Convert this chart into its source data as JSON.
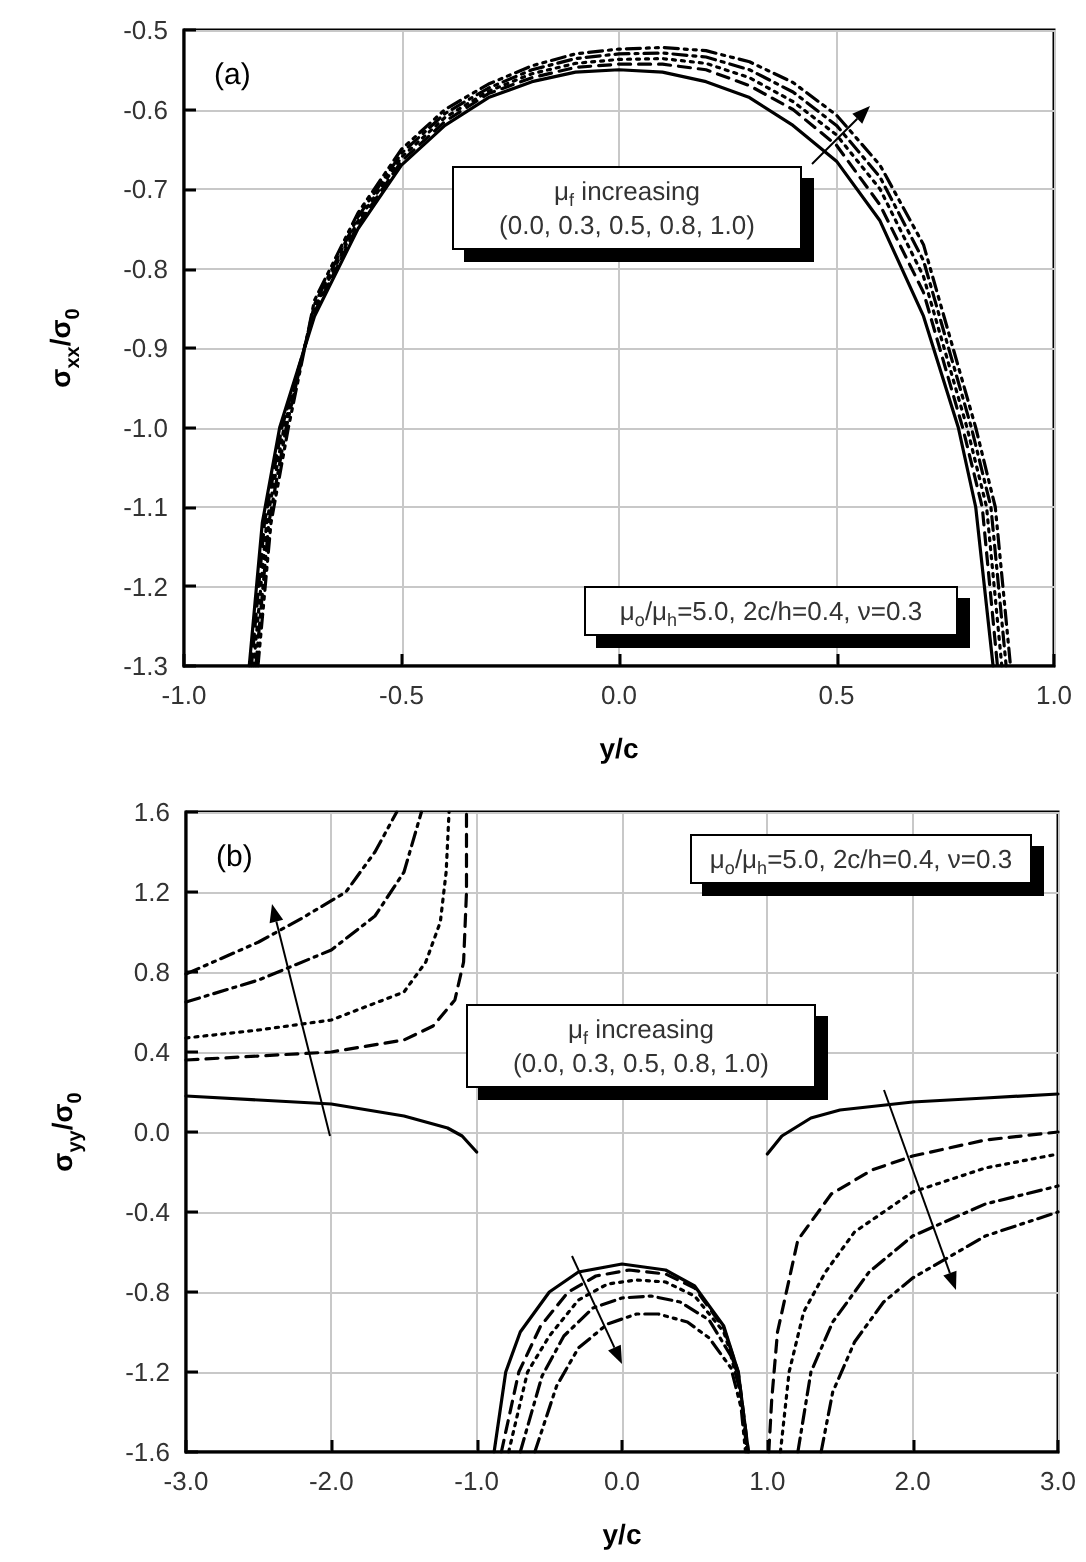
{
  "chart_data": [
    {
      "type": "line",
      "title": "(a)",
      "xlabel": "y/c",
      "ylabel": "σ$_{xx}$/σ$_{0}$",
      "annotations": [
        "μ$_{f}$ increasing\n(0.0, 0.3, 0.5, 0.8, 1.0)",
        "μ$_{o}$/μ$_{h}$=5.0, 2c/h=0.4, ν=0.3"
      ],
      "xlim": [
        -1,
        1
      ],
      "xticks": [
        {
          "value": -1,
          "label": "-1.0"
        },
        -0.5,
        {
          "value": 0,
          "label": "0.0"
        },
        0.5,
        {
          "value": 1,
          "label": "1.0"
        }
      ],
      "ylim": [
        -1.3,
        -0.5
      ],
      "yticks": [
        -0.5,
        -0.6,
        -0.7,
        -0.8,
        -0.9,
        {
          "value": -1,
          "label": "-1.0"
        },
        -1.1,
        -1.2,
        -1.3
      ],
      "grid": true,
      "marker": "none",
      "series": [
        {
          "color": "#000000",
          "line_style": "solid",
          "x": [
            -0.85,
            -0.82,
            -0.78,
            -0.7,
            -0.6,
            -0.5,
            -0.4,
            -0.3,
            -0.2,
            -0.1,
            0,
            0.1,
            0.2,
            0.3,
            0.4,
            0.5,
            0.6,
            0.7,
            0.78,
            0.82,
            0.86
          ],
          "values": [
            -1.3,
            -1.12,
            -1.0,
            -0.86,
            -0.75,
            -0.67,
            -0.62,
            -0.585,
            -0.565,
            -0.553,
            -0.55,
            -0.553,
            -0.565,
            -0.585,
            -0.62,
            -0.665,
            -0.74,
            -0.86,
            -1.0,
            -1.1,
            -1.3
          ]
        },
        {
          "color": "#000000",
          "line_style": "dashed",
          "x": [
            -0.845,
            -0.815,
            -0.775,
            -0.7,
            -0.6,
            -0.5,
            -0.4,
            -0.3,
            -0.2,
            -0.1,
            0,
            0.1,
            0.2,
            0.3,
            0.4,
            0.5,
            0.6,
            0.7,
            0.79,
            0.835,
            0.87
          ],
          "values": [
            -1.3,
            -1.12,
            -1.0,
            -0.855,
            -0.745,
            -0.665,
            -0.615,
            -0.58,
            -0.56,
            -0.547,
            -0.543,
            -0.543,
            -0.55,
            -0.57,
            -0.6,
            -0.645,
            -0.72,
            -0.83,
            -1.0,
            -1.1,
            -1.3
          ]
        },
        {
          "color": "#000000",
          "line_style": "dotted",
          "x": [
            -0.84,
            -0.81,
            -0.77,
            -0.7,
            -0.6,
            -0.5,
            -0.4,
            -0.3,
            -0.2,
            -0.1,
            0,
            0.1,
            0.2,
            0.3,
            0.4,
            0.5,
            0.6,
            0.7,
            0.8,
            0.845,
            0.88
          ],
          "values": [
            -1.3,
            -1.12,
            -1.0,
            -0.85,
            -0.74,
            -0.66,
            -0.61,
            -0.577,
            -0.555,
            -0.542,
            -0.537,
            -0.536,
            -0.542,
            -0.56,
            -0.59,
            -0.632,
            -0.7,
            -0.81,
            -1.0,
            -1.1,
            -1.3
          ]
        },
        {
          "color": "#000000",
          "line_style": "dashdot",
          "x": [
            -0.835,
            -0.805,
            -0.765,
            -0.7,
            -0.6,
            -0.5,
            -0.4,
            -0.3,
            -0.2,
            -0.1,
            0,
            0.1,
            0.2,
            0.3,
            0.4,
            0.5,
            0.6,
            0.7,
            0.81,
            0.855,
            0.89
          ],
          "values": [
            -1.3,
            -1.12,
            -1.0,
            -0.845,
            -0.735,
            -0.655,
            -0.605,
            -0.573,
            -0.55,
            -0.536,
            -0.53,
            -0.529,
            -0.534,
            -0.55,
            -0.578,
            -0.62,
            -0.685,
            -0.79,
            -1.0,
            -1.1,
            -1.3
          ]
        },
        {
          "color": "#000000",
          "line_style": "dashdotdot",
          "x": [
            -0.83,
            -0.8,
            -0.76,
            -0.7,
            -0.6,
            -0.5,
            -0.4,
            -0.3,
            -0.2,
            -0.1,
            0,
            0.1,
            0.2,
            0.3,
            0.4,
            0.5,
            0.6,
            0.7,
            0.82,
            0.865,
            0.9
          ],
          "values": [
            -1.3,
            -1.12,
            -1.0,
            -0.84,
            -0.73,
            -0.65,
            -0.6,
            -0.568,
            -0.545,
            -0.53,
            -0.524,
            -0.522,
            -0.526,
            -0.54,
            -0.566,
            -0.607,
            -0.67,
            -0.77,
            -1.0,
            -1.1,
            -1.3
          ]
        }
      ]
    },
    {
      "type": "line",
      "title": "(b)",
      "xlabel": "y/c",
      "ylabel": "σ$_{yy}$/σ$_{0}$",
      "annotations": [
        "μ$_{o}$/μ$_{h}$=5.0, 2c/h=0.4, ν=0.3",
        "μ$_{f}$ increasing\n(0.0, 0.3, 0.5, 0.8, 1.0)"
      ],
      "xlim": [
        -3,
        3
      ],
      "xticks": [
        {
          "value": -3,
          "label": "-3.0"
        },
        {
          "value": -2,
          "label": "-2.0"
        },
        {
          "value": -1,
          "label": "-1.0"
        },
        {
          "value": 0,
          "label": "0.0"
        },
        {
          "value": 1,
          "label": "1.0"
        },
        {
          "value": 2,
          "label": "2.0"
        },
        {
          "value": 3,
          "label": "3.0"
        }
      ],
      "ylim": [
        -1.6,
        1.6
      ],
      "yticks": [
        1.6,
        1.2,
        0.8,
        0.4,
        {
          "value": 0,
          "label": "0.0"
        },
        -0.4,
        -0.8,
        -1.2,
        -1.6
      ],
      "grid": true,
      "marker": "none",
      "series": [
        {
          "color": "#000000",
          "line_style": "solid",
          "x": [
            -3,
            -2.5,
            -2,
            -1.5,
            -1.2,
            -1.1,
            -1.0,
            null,
            -0.88,
            -0.8,
            -0.7,
            -0.5,
            -0.3,
            0,
            0.3,
            0.5,
            0.7,
            0.8,
            0.87,
            null,
            1.0,
            1.1,
            1.3,
            1.5,
            2.0,
            2.5,
            3.0
          ],
          "values": [
            0.18,
            0.16,
            0.14,
            0.08,
            0.02,
            -0.02,
            -0.1,
            null,
            -1.6,
            -1.2,
            -1.0,
            -0.8,
            -0.7,
            -0.66,
            -0.69,
            -0.77,
            -0.97,
            -1.2,
            -1.6,
            null,
            -0.11,
            -0.02,
            0.07,
            0.11,
            0.15,
            0.17,
            0.19
          ]
        },
        {
          "color": "#000000",
          "line_style": "dashed",
          "x": [
            -3,
            -2.5,
            -2,
            -1.5,
            -1.3,
            -1.15,
            -1.09,
            -1.07,
            -1.07,
            null,
            -0.83,
            -0.71,
            -0.56,
            -0.37,
            -0.18,
            0.05,
            0.3,
            0.5,
            0.7,
            0.8,
            0.87,
            null,
            1.01,
            1.03,
            1.07,
            1.21,
            1.44,
            1.72,
            2.0,
            2.5,
            3.0
          ],
          "values": [
            0.36,
            0.38,
            0.4,
            0.46,
            0.53,
            0.66,
            0.85,
            1.2,
            1.6,
            null,
            -1.6,
            -1.2,
            -0.97,
            -0.8,
            -0.72,
            -0.69,
            -0.71,
            -0.78,
            -0.98,
            -1.2,
            -1.6,
            null,
            -1.6,
            -1.34,
            -1.0,
            -0.54,
            -0.31,
            -0.19,
            -0.12,
            -0.04,
            0.0
          ]
        },
        {
          "color": "#000000",
          "line_style": "dotted",
          "x": [
            -3,
            -2.5,
            -2,
            -1.5,
            -1.35,
            -1.25,
            -1.21,
            -1.19,
            null,
            -0.78,
            -0.65,
            -0.5,
            -0.3,
            -0.1,
            0.1,
            0.3,
            0.5,
            0.7,
            0.8,
            0.86,
            null,
            1.09,
            1.15,
            1.25,
            1.4,
            1.6,
            2.0,
            2.5,
            3.0
          ],
          "values": [
            0.47,
            0.51,
            0.56,
            0.7,
            0.85,
            1.05,
            1.3,
            1.6,
            null,
            -1.6,
            -1.2,
            -1.02,
            -0.84,
            -0.76,
            -0.74,
            -0.75,
            -0.82,
            -1.0,
            -1.22,
            -1.6,
            null,
            -1.6,
            -1.2,
            -0.9,
            -0.7,
            -0.5,
            -0.3,
            -0.18,
            -0.11
          ]
        },
        {
          "color": "#000000",
          "line_style": "dashdot",
          "x": [
            -3,
            -2.5,
            -2,
            -1.7,
            -1.5,
            -1.38,
            null,
            -0.7,
            -0.55,
            -0.4,
            -0.2,
            0.0,
            0.2,
            0.4,
            0.6,
            0.75,
            0.82,
            0.86,
            null,
            1.21,
            1.3,
            1.45,
            1.7,
            2.0,
            2.5,
            3.0
          ],
          "values": [
            0.65,
            0.76,
            0.91,
            1.08,
            1.3,
            1.6,
            null,
            -1.6,
            -1.22,
            -1.02,
            -0.88,
            -0.83,
            -0.82,
            -0.85,
            -0.94,
            -1.12,
            -1.32,
            -1.6,
            null,
            -1.6,
            -1.2,
            -0.95,
            -0.7,
            -0.52,
            -0.36,
            -0.27
          ]
        },
        {
          "color": "#000000",
          "line_style": "dashdotdot",
          "x": [
            -3,
            -2.5,
            -2.2,
            -1.9,
            -1.7,
            -1.55,
            null,
            -0.6,
            -0.45,
            -0.3,
            -0.1,
            0.1,
            0.25,
            0.45,
            0.6,
            0.75,
            0.82,
            0.85,
            null,
            1.37,
            1.45,
            1.6,
            1.8,
            2.0,
            2.5,
            3.0
          ],
          "values": [
            0.79,
            0.95,
            1.07,
            1.2,
            1.4,
            1.6,
            null,
            -1.6,
            -1.27,
            -1.08,
            -0.96,
            -0.91,
            -0.91,
            -0.95,
            -1.03,
            -1.18,
            -1.38,
            -1.6,
            null,
            -1.6,
            -1.3,
            -1.05,
            -0.85,
            -0.73,
            -0.52,
            -0.4
          ]
        }
      ]
    }
  ]
}
